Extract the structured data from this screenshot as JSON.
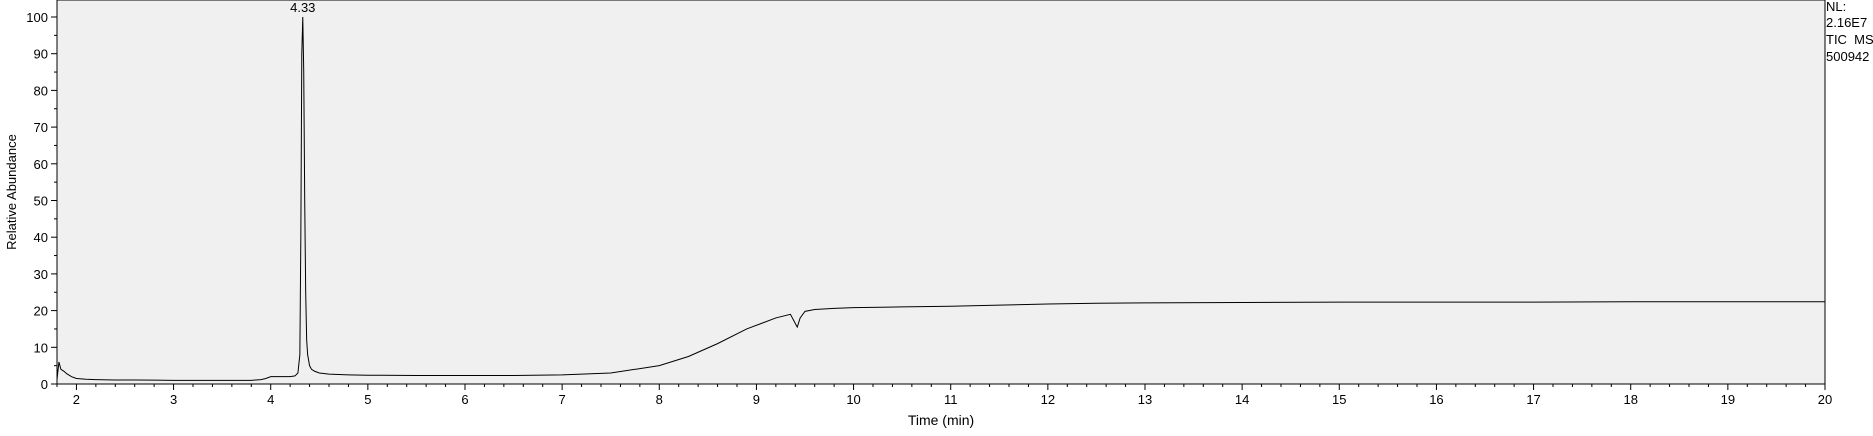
{
  "chart_data": {
    "type": "line",
    "title": "",
    "xlabel": "Time (min)",
    "ylabel": "Relative Abundance",
    "xlim": [
      1.8,
      20
    ],
    "ylim": [
      0,
      100
    ],
    "x_ticks": [
      "2",
      "3",
      "4",
      "5",
      "6",
      "7",
      "8",
      "9",
      "10",
      "11",
      "12",
      "13",
      "14",
      "15",
      "16",
      "17",
      "18",
      "19",
      "20"
    ],
    "y_ticks": [
      "0",
      "10",
      "20",
      "30",
      "40",
      "50",
      "60",
      "70",
      "80",
      "90",
      "100"
    ],
    "annotations": [
      {
        "x": 4.33,
        "y": 100,
        "text": "4.33"
      }
    ],
    "info_lines": [
      "NL:",
      "2.16E7",
      "TIC  MS",
      "500942"
    ],
    "grid": false,
    "series": [
      {
        "line_color": "#000000",
        "x": [
          1.8,
          1.82,
          1.84,
          1.87,
          1.9,
          1.95,
          2.0,
          2.1,
          2.2,
          2.4,
          2.6,
          2.8,
          3.0,
          3.2,
          3.4,
          3.6,
          3.8,
          3.9,
          3.95,
          4.0,
          4.1,
          4.2,
          4.25,
          4.28,
          4.3,
          4.31,
          4.32,
          4.33,
          4.34,
          4.35,
          4.36,
          4.37,
          4.38,
          4.4,
          4.42,
          4.45,
          4.5,
          4.6,
          4.8,
          5.0,
          5.5,
          6.0,
          6.5,
          7.0,
          7.5,
          8.0,
          8.3,
          8.6,
          8.9,
          9.2,
          9.35,
          9.42,
          9.45,
          9.5,
          9.6,
          9.8,
          10.0,
          10.5,
          11.0,
          11.5,
          12.0,
          12.5,
          13.0,
          14.0,
          15.0,
          16.0,
          17.0,
          18.0,
          19.0,
          20.0
        ],
        "y": [
          1.2,
          6.0,
          4.0,
          3.5,
          2.8,
          2.0,
          1.5,
          1.3,
          1.2,
          1.1,
          1.1,
          1.05,
          1.0,
          1.0,
          1.0,
          1.0,
          1.0,
          1.2,
          1.5,
          2.0,
          2.0,
          2.0,
          2.2,
          3.0,
          8.0,
          40.0,
          90.0,
          100.0,
          85.0,
          50.0,
          25.0,
          12.0,
          8.0,
          5.0,
          4.0,
          3.5,
          3.0,
          2.7,
          2.5,
          2.4,
          2.3,
          2.3,
          2.3,
          2.5,
          3.0,
          5.0,
          7.5,
          11.0,
          15.0,
          18.0,
          19.0,
          15.5,
          18.0,
          19.8,
          20.3,
          20.6,
          20.8,
          21.0,
          21.2,
          21.5,
          21.8,
          22.0,
          22.1,
          22.2,
          22.3,
          22.3,
          22.3,
          22.4,
          22.4,
          22.4
        ]
      }
    ]
  }
}
